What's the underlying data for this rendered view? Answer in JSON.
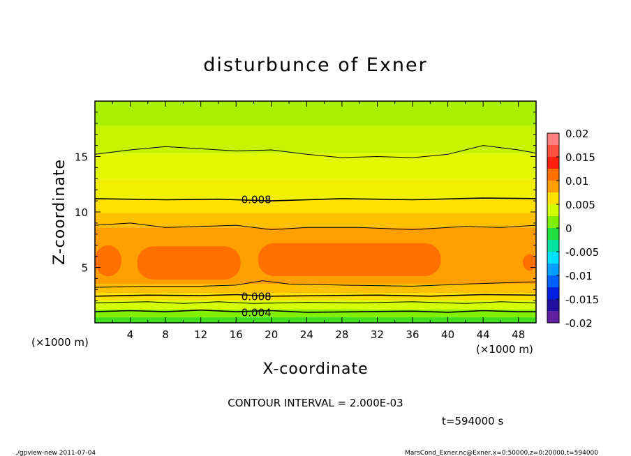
{
  "chart_data": {
    "type": "heatmap",
    "title": "disturbunce of Exner",
    "xlabel": "X-coordinate",
    "ylabel": "Z-coordinate",
    "x_unit": "(×1000 m)",
    "y_unit": "(×1000 m)",
    "xlim": [
      0,
      50
    ],
    "ylim": [
      0,
      20
    ],
    "x_ticks": [
      4,
      8,
      12,
      16,
      20,
      24,
      28,
      32,
      36,
      40,
      44,
      48
    ],
    "y_ticks": [
      5,
      10,
      15
    ],
    "colorbar": {
      "ticks": [
        "0.02",
        "0.015",
        "0.01",
        "0.005",
        "0",
        "-0.005",
        "-0.01",
        "-0.015",
        "-0.02"
      ],
      "range": [
        -0.02,
        0.02
      ],
      "levels": [
        {
          "from": 0.0175,
          "to": 0.02,
          "color": "#ff8080"
        },
        {
          "from": 0.015,
          "to": 0.0175,
          "color": "#ff5040"
        },
        {
          "from": 0.0125,
          "to": 0.015,
          "color": "#ff2010"
        },
        {
          "from": 0.01,
          "to": 0.0125,
          "color": "#ff7000"
        },
        {
          "from": 0.0075,
          "to": 0.01,
          "color": "#ffa000"
        },
        {
          "from": 0.005,
          "to": 0.0075,
          "color": "#ffe000"
        },
        {
          "from": 0.0025,
          "to": 0.005,
          "color": "#d4ff00"
        },
        {
          "from": 0.0,
          "to": 0.0025,
          "color": "#80f000"
        },
        {
          "from": -0.0025,
          "to": 0.0,
          "color": "#20e040"
        },
        {
          "from": -0.005,
          "to": -0.0025,
          "color": "#00e0a0"
        },
        {
          "from": -0.0075,
          "to": -0.005,
          "color": "#00e0ff"
        },
        {
          "from": -0.01,
          "to": -0.0075,
          "color": "#00a0ff"
        },
        {
          "from": -0.0125,
          "to": -0.01,
          "color": "#0060ff"
        },
        {
          "from": -0.015,
          "to": -0.0125,
          "color": "#0020e0"
        },
        {
          "from": -0.0175,
          "to": -0.015,
          "color": "#2010a0"
        },
        {
          "from": -0.02,
          "to": -0.0175,
          "color": "#6020a0"
        }
      ]
    },
    "field_bands": [
      {
        "z": [
          0.0,
          0.5
        ],
        "color": "#40e020"
      },
      {
        "z": [
          0.5,
          1.2
        ],
        "color": "#80f000"
      },
      {
        "z": [
          1.2,
          2.0
        ],
        "color": "#d4ff00"
      },
      {
        "z": [
          2.0,
          2.7
        ],
        "color": "#ffe000"
      },
      {
        "z": [
          2.7,
          3.5
        ],
        "color": "#ffc000"
      },
      {
        "z": [
          3.5,
          8.6
        ],
        "color": "#ffa000"
      },
      {
        "z": [
          8.6,
          9.9
        ],
        "color": "#ffc000"
      },
      {
        "z": [
          9.9,
          11.1
        ],
        "color": "#ffe000"
      },
      {
        "z": [
          11.1,
          13.0
        ],
        "color": "#f0f000"
      },
      {
        "z": [
          13.0,
          15.3
        ],
        "color": "#e0f800"
      },
      {
        "z": [
          15.3,
          17.8
        ],
        "color": "#c4f400"
      },
      {
        "z": [
          17.8,
          20.0
        ],
        "color": "#a8f000"
      }
    ],
    "orange_blobs": [
      {
        "x": [
          0.0,
          3.0
        ],
        "z": [
          4.2,
          7.0
        ]
      },
      {
        "x": [
          4.8,
          16.5
        ],
        "z": [
          3.9,
          6.9
        ]
      },
      {
        "x": [
          18.5,
          39.2
        ],
        "z": [
          4.2,
          7.2
        ]
      },
      {
        "x": [
          48.5,
          50.0
        ],
        "z": [
          4.7,
          6.2
        ]
      }
    ],
    "contours": [
      {
        "value": "0.004",
        "points": [
          [
            0,
            1.0
          ],
          [
            4,
            1.1
          ],
          [
            8,
            1.0
          ],
          [
            12,
            1.15
          ],
          [
            16,
            1.0
          ],
          [
            20,
            1.1
          ],
          [
            24,
            0.95
          ],
          [
            30,
            1.0
          ],
          [
            36,
            1.05
          ],
          [
            40,
            0.95
          ],
          [
            44,
            1.1
          ],
          [
            48,
            1.0
          ],
          [
            50,
            1.0
          ]
        ],
        "label_at": [
          17.5,
          0.9
        ]
      },
      {
        "value": "",
        "points": [
          [
            0,
            1.8
          ],
          [
            6,
            1.9
          ],
          [
            10,
            1.75
          ],
          [
            14,
            1.9
          ],
          [
            18,
            1.75
          ],
          [
            24,
            1.85
          ],
          [
            30,
            1.8
          ],
          [
            36,
            1.9
          ],
          [
            42,
            1.75
          ],
          [
            46,
            1.9
          ],
          [
            50,
            1.8
          ]
        ],
        "label_at": null
      },
      {
        "value": "0.008",
        "points": [
          [
            0,
            2.4
          ],
          [
            6,
            2.5
          ],
          [
            12,
            2.45
          ],
          [
            16,
            2.55
          ],
          [
            20,
            2.4
          ],
          [
            26,
            2.45
          ],
          [
            32,
            2.5
          ],
          [
            38,
            2.4
          ],
          [
            44,
            2.55
          ],
          [
            50,
            2.5
          ]
        ],
        "label_at": [
          17.5,
          2.35
        ]
      },
      {
        "value": "",
        "points": [
          [
            0,
            3.2
          ],
          [
            6,
            3.3
          ],
          [
            12,
            3.3
          ],
          [
            16,
            3.4
          ],
          [
            19,
            3.8
          ],
          [
            22,
            3.5
          ],
          [
            28,
            3.4
          ],
          [
            36,
            3.3
          ],
          [
            42,
            3.5
          ],
          [
            46,
            3.6
          ],
          [
            50,
            3.7
          ]
        ],
        "label_at": null
      },
      {
        "value": "",
        "points": [
          [
            0,
            8.8
          ],
          [
            4,
            9.0
          ],
          [
            8,
            8.6
          ],
          [
            12,
            8.7
          ],
          [
            16,
            8.8
          ],
          [
            20,
            8.4
          ],
          [
            24,
            8.6
          ],
          [
            30,
            8.6
          ],
          [
            36,
            8.4
          ],
          [
            42,
            8.7
          ],
          [
            46,
            8.6
          ],
          [
            50,
            8.8
          ]
        ],
        "label_at": null
      },
      {
        "value": "0.008",
        "points": [
          [
            0,
            11.2
          ],
          [
            8,
            11.1
          ],
          [
            14,
            11.15
          ],
          [
            20,
            11.0
          ],
          [
            28,
            11.2
          ],
          [
            36,
            11.1
          ],
          [
            44,
            11.25
          ],
          [
            50,
            11.2
          ]
        ],
        "label_at": [
          17.5,
          11.1
        ]
      },
      {
        "value": "",
        "points": [
          [
            0,
            15.2
          ],
          [
            4,
            15.6
          ],
          [
            8,
            15.9
          ],
          [
            12,
            15.7
          ],
          [
            16,
            15.5
          ],
          [
            20,
            15.6
          ],
          [
            24,
            15.2
          ],
          [
            28,
            14.9
          ],
          [
            32,
            15.0
          ],
          [
            36,
            14.9
          ],
          [
            40,
            15.2
          ],
          [
            44,
            16.0
          ],
          [
            48,
            15.6
          ],
          [
            50,
            15.3
          ]
        ],
        "label_at": null
      }
    ]
  },
  "labels": {
    "x_ticks": [
      "4",
      "8",
      "12",
      "16",
      "20",
      "24",
      "28",
      "32",
      "36",
      "40",
      "44",
      "48"
    ],
    "y_ticks": [
      "5",
      "10",
      "15"
    ],
    "x_unit": "(×1000 m)",
    "y_unit": "(×1000 m)",
    "contour_interval": "CONTOUR INTERVAL = 2.000E-03",
    "time": "t=594000 s",
    "footer_left": "./gpview-new   2011-07-04",
    "footer_right": "MarsCond_Exner.nc@Exner,x=0:50000,z=0:20000,t=594000"
  }
}
